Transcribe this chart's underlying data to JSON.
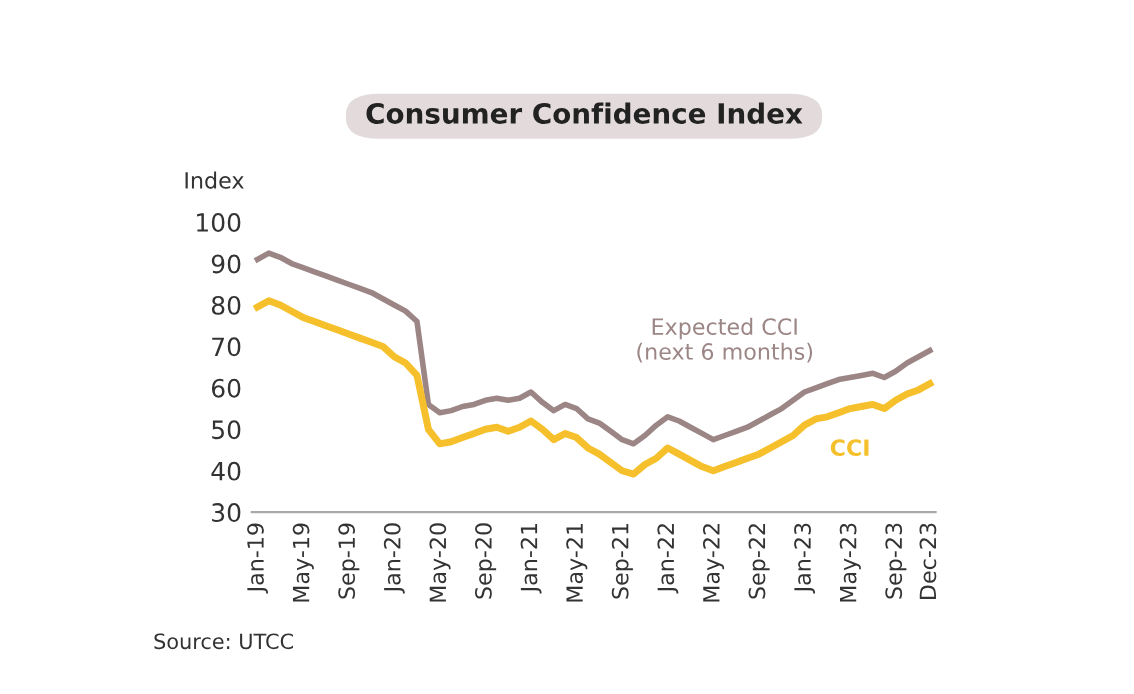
{
  "chart_data": {
    "type": "line",
    "title": "Consumer Confidence Index",
    "ylabel": "Index",
    "categories": [
      "Jan-19",
      null,
      null,
      null,
      "May-19",
      null,
      null,
      null,
      "Sep-19",
      null,
      null,
      null,
      "Jan-20",
      null,
      null,
      null,
      "May-20",
      null,
      null,
      null,
      "Sep-20",
      null,
      null,
      null,
      "Jan-21",
      null,
      null,
      null,
      "May-21",
      null,
      null,
      null,
      "Sep-21",
      null,
      null,
      null,
      "Jan-22",
      null,
      null,
      null,
      "May-22",
      null,
      null,
      null,
      "Sep-22",
      null,
      null,
      null,
      "Jan-23",
      null,
      null,
      null,
      "May-23",
      null,
      null,
      null,
      "Sep-23",
      null,
      null,
      "Dec-23"
    ],
    "series": [
      {
        "name": "Expected CCI\n(next 6 months)",
        "color": "#9c8585",
        "values": [
          91,
          92.5,
          91.5,
          90,
          89,
          88,
          87,
          86,
          85,
          84,
          83,
          81.5,
          80,
          78.5,
          76,
          56,
          54,
          54.5,
          55.5,
          56,
          57,
          57.5,
          57,
          57.5,
          59,
          56.5,
          54.5,
          56,
          55,
          52.5,
          51.5,
          49.5,
          47.5,
          46.5,
          48.5,
          51,
          53,
          52,
          50.5,
          49,
          47.5,
          48.5,
          49.5,
          50.5,
          52,
          53.5,
          55,
          57,
          59,
          60,
          61,
          62,
          62.5,
          63,
          63.5,
          62.5,
          64,
          66,
          67.5,
          69
        ]
      },
      {
        "name": "CCI",
        "color": "#f5c02c",
        "values": [
          79.5,
          81,
          80,
          78.5,
          77,
          76,
          75,
          74,
          73,
          72,
          71,
          70,
          67.5,
          66,
          63,
          50,
          46.5,
          47,
          48,
          49,
          50,
          50.5,
          49.5,
          50.5,
          52,
          50,
          47.5,
          49,
          48,
          45.5,
          44,
          42,
          40,
          39.2,
          41.5,
          43,
          45.5,
          44,
          42.5,
          41,
          40,
          41,
          42,
          43,
          44,
          45.5,
          47,
          48.5,
          51,
          52.5,
          53,
          54,
          55,
          55.5,
          56,
          55,
          57,
          58.5,
          59.5,
          61
        ]
      }
    ],
    "ylim": [
      30,
      100
    ],
    "yticks": [
      30,
      40,
      50,
      60,
      70,
      80,
      90,
      100
    ],
    "grid": false,
    "legend": false,
    "marker": "none",
    "line_style": "solid",
    "annotations": [
      "Source: UTCC"
    ]
  }
}
